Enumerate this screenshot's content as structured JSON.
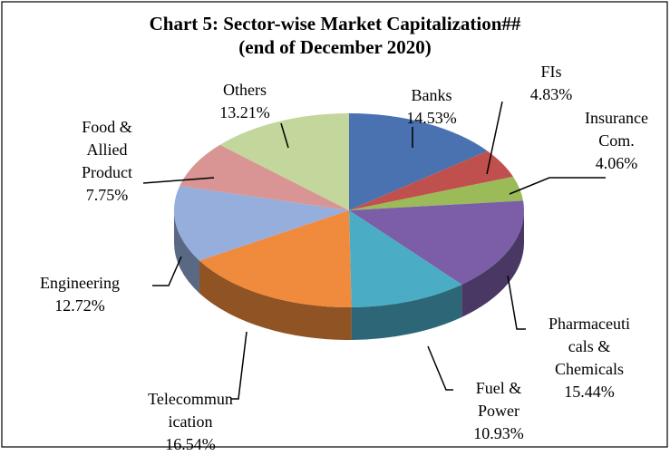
{
  "chart_data": {
    "type": "pie",
    "title": "Chart 5: Sector-wise Market Capitalization##",
    "subtitle": "(end of December 2020)",
    "categories": [
      "Banks",
      "FIs",
      "Insurance\nCom.",
      "Pharmaceuti\ncals &\nChemicals",
      "Fuel &\nPower",
      "Telecommun\nication",
      "Engineering",
      "Food &\nAllied\nProduct",
      "Others"
    ],
    "values": [
      14.53,
      4.83,
      4.06,
      15.44,
      10.93,
      16.54,
      12.72,
      7.75,
      13.21
    ],
    "value_labels": [
      "14.53%",
      "4.83%",
      "4.06%",
      "15.44%",
      "10.93%",
      "16.54%",
      "12.72%",
      "7.75%",
      "13.21%"
    ],
    "colors": [
      "#4a72b0",
      "#c0504d",
      "#9bbb59",
      "#7b5ea7",
      "#4bacc6",
      "#f08a3c",
      "#95aedb",
      "#d99594",
      "#c3d69b"
    ]
  }
}
